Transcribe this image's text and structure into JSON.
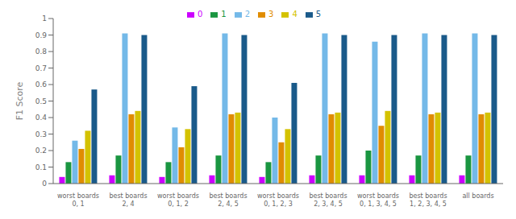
{
  "chart_data": {
    "type": "bar",
    "y_label": "F1 Score",
    "categories": [
      "worst boards\n0, 1",
      "best boards\n2, 4",
      "worst boards\n0, 1, 2",
      "best boards\n2, 4, 5",
      "worst boards\n0, 1, 2, 3",
      "best boards\n2, 3, 4, 5",
      "worst boards\n0, 1, 3, 4, 5",
      "best boards\n1, 2, 3, 4, 5",
      "all boards\n"
    ],
    "series": [
      {
        "name": "0",
        "color": "#cc00ff",
        "values": [
          0.04,
          0.05,
          0.04,
          0.05,
          0.04,
          0.05,
          0.05,
          0.05,
          0.05
        ]
      },
      {
        "name": "1",
        "color": "#1a9641",
        "values": [
          0.13,
          0.17,
          0.13,
          0.17,
          0.13,
          0.17,
          0.2,
          0.17,
          0.17
        ]
      },
      {
        "name": "2",
        "color": "#74b9e8",
        "values": [
          0.26,
          0.91,
          0.34,
          0.91,
          0.4,
          0.91,
          0.86,
          0.91,
          0.91
        ]
      },
      {
        "name": "3",
        "color": "#e08c00",
        "values": [
          0.21,
          0.42,
          0.22,
          0.42,
          0.25,
          0.42,
          0.35,
          0.42,
          0.42
        ]
      },
      {
        "name": "4",
        "color": "#d4c200",
        "values": [
          0.32,
          0.44,
          0.33,
          0.43,
          0.33,
          0.43,
          0.44,
          0.43,
          0.43
        ]
      },
      {
        "name": "5",
        "color": "#1a5a8a",
        "values": [
          0.57,
          0.9,
          0.59,
          0.9,
          0.61,
          0.9,
          0.9,
          0.9,
          0.9
        ]
      }
    ],
    "ylim": [
      0,
      1
    ],
    "yticks": [
      0,
      0.1,
      0.2,
      0.3,
      0.4,
      0.5,
      0.6,
      0.7,
      0.8,
      0.9,
      1
    ],
    "grid": false,
    "legend": "top"
  }
}
